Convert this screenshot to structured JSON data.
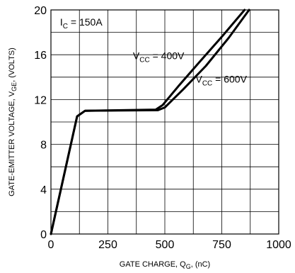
{
  "chart_data": {
    "type": "line",
    "xlabel": {
      "main": "GATE CHARGE, Q",
      "sub": "G",
      "tail": ", (nC)"
    },
    "ylabel": {
      "main": "GATE-EMITTER VOLTAGE, V",
      "sub": "GE",
      "tail": ", (VOLTS)"
    },
    "xlim": [
      0,
      1000
    ],
    "ylim": [
      0,
      20
    ],
    "x_ticks": [
      0,
      125,
      250,
      375,
      500,
      625,
      750,
      875,
      1000
    ],
    "x_tick_labels": [
      "0",
      "",
      "250",
      "",
      "500",
      "",
      "750",
      "",
      "1000"
    ],
    "y_ticks": [
      0,
      2,
      4,
      6,
      8,
      10,
      12,
      14,
      16,
      18,
      20
    ],
    "y_tick_labels": [
      "0",
      "",
      "4",
      "",
      "8",
      "",
      "12",
      "",
      "16",
      "",
      "20"
    ],
    "grid": true,
    "annotations": [
      {
        "id": "ic",
        "main": "I",
        "sub": "C",
        "tail": " = 150A",
        "x": 40,
        "y": 18.6
      },
      {
        "id": "vcc400",
        "main": "V",
        "sub": "CC",
        "tail": " = 400V",
        "x": 360,
        "y": 15.6
      },
      {
        "id": "vcc600",
        "main": "V",
        "sub": "CC",
        "tail": " = 600V",
        "x": 635,
        "y": 13.5
      }
    ],
    "series": [
      {
        "label": "V_CC = 400V",
        "x": [
          0,
          115,
          150,
          460,
          490,
          560,
          650,
          750,
          850
        ],
        "y": [
          0,
          10.5,
          11.0,
          11.1,
          11.5,
          13.2,
          15.3,
          17.6,
          20.0
        ]
      },
      {
        "label": "V_CC = 600V",
        "x": [
          0,
          115,
          150,
          470,
          500,
          580,
          680,
          780,
          870
        ],
        "y": [
          0,
          10.5,
          11.0,
          11.05,
          11.3,
          12.9,
          15.0,
          17.5,
          20.0
        ]
      }
    ],
    "colors": {
      "line": "#000000",
      "grid": "#000000",
      "background": "#ffffff"
    }
  }
}
